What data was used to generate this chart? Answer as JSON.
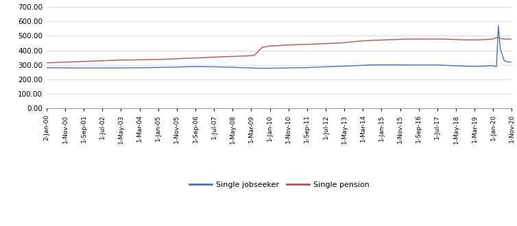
{
  "title": "",
  "jobseeker_color": "#4472C4",
  "pension_color": "#C0504D",
  "ylim": [
    0,
    700
  ],
  "yticks": [
    0,
    100,
    200,
    300,
    400,
    500,
    600,
    700
  ],
  "ytick_labels": [
    "0.00",
    "100.00",
    "200.00",
    "300.00",
    "400.00",
    "500.00",
    "600.00",
    "700.00"
  ],
  "legend_labels": [
    "Single jobseeker",
    "Single pension"
  ],
  "xtick_labels": [
    "2-Jan-00",
    "1-Nov-00",
    "1-Sep-01",
    "1-Jul-02",
    "1-May-03",
    "1-Mar-04",
    "1-Jan-05",
    "1-Nov-05",
    "1-Sep-06",
    "1-Jul-07",
    "1-May-08",
    "1-Mar-09",
    "1-Jan-10",
    "1-Nov-10",
    "1-Sep-11",
    "1-Jul-12",
    "1-May-13",
    "1-Mar-14",
    "1-Jan-15",
    "1-Nov-15",
    "1-Sep-16",
    "1-Jul-17",
    "1-May-18",
    "1-Mar-19",
    "1-Jan-20",
    "1-Nov-20"
  ],
  "jobseeker_data": [
    [
      0,
      280
    ],
    [
      2,
      280
    ],
    [
      4,
      280
    ],
    [
      8,
      280
    ],
    [
      12,
      279
    ],
    [
      16,
      279
    ],
    [
      20,
      279
    ],
    [
      24,
      279
    ],
    [
      28,
      279
    ],
    [
      32,
      279
    ],
    [
      36,
      279
    ],
    [
      40,
      279
    ],
    [
      44,
      280
    ],
    [
      48,
      280
    ],
    [
      52,
      281
    ],
    [
      56,
      282
    ],
    [
      60,
      283
    ],
    [
      64,
      284
    ],
    [
      68,
      285
    ],
    [
      70,
      286
    ],
    [
      74,
      288
    ],
    [
      78,
      288
    ],
    [
      82,
      288
    ],
    [
      84,
      287
    ],
    [
      88,
      287
    ],
    [
      92,
      285
    ],
    [
      96,
      284
    ],
    [
      100,
      282
    ],
    [
      104,
      280
    ],
    [
      108,
      278
    ],
    [
      112,
      277
    ],
    [
      116,
      277
    ],
    [
      120,
      278
    ],
    [
      122,
      278
    ],
    [
      124,
      279
    ],
    [
      128,
      280
    ],
    [
      132,
      281
    ],
    [
      136,
      282
    ],
    [
      140,
      284
    ],
    [
      144,
      286
    ],
    [
      148,
      288
    ],
    [
      152,
      290
    ],
    [
      156,
      292
    ],
    [
      160,
      294
    ],
    [
      162,
      296
    ],
    [
      164,
      297
    ],
    [
      168,
      299
    ],
    [
      172,
      300
    ],
    [
      176,
      300
    ],
    [
      180,
      300
    ],
    [
      184,
      300
    ],
    [
      188,
      299
    ],
    [
      192,
      299
    ],
    [
      196,
      299
    ],
    [
      200,
      299
    ],
    [
      202,
      299
    ],
    [
      204,
      299
    ],
    [
      206,
      298
    ],
    [
      208,
      297
    ],
    [
      210,
      295
    ],
    [
      212,
      294
    ],
    [
      214,
      293
    ],
    [
      216,
      292
    ],
    [
      218,
      291
    ],
    [
      220,
      290
    ],
    [
      222,
      290
    ],
    [
      224,
      290
    ],
    [
      226,
      291
    ],
    [
      228,
      292
    ],
    [
      230,
      293
    ],
    [
      232,
      295
    ],
    [
      234,
      287
    ],
    [
      235,
      570
    ],
    [
      236,
      410
    ],
    [
      238,
      330
    ],
    [
      240,
      320
    ],
    [
      242,
      320
    ]
  ],
  "pension_data": [
    [
      0,
      315
    ],
    [
      2,
      315
    ],
    [
      4,
      316
    ],
    [
      8,
      318
    ],
    [
      12,
      320
    ],
    [
      16,
      322
    ],
    [
      20,
      324
    ],
    [
      24,
      326
    ],
    [
      28,
      328
    ],
    [
      32,
      330
    ],
    [
      36,
      332
    ],
    [
      40,
      334
    ],
    [
      44,
      334
    ],
    [
      48,
      335
    ],
    [
      52,
      336
    ],
    [
      56,
      337
    ],
    [
      60,
      338
    ],
    [
      64,
      340
    ],
    [
      68,
      342
    ],
    [
      70,
      344
    ],
    [
      74,
      346
    ],
    [
      78,
      348
    ],
    [
      82,
      350
    ],
    [
      84,
      352
    ],
    [
      88,
      354
    ],
    [
      92,
      356
    ],
    [
      96,
      358
    ],
    [
      100,
      360
    ],
    [
      104,
      362
    ],
    [
      108,
      365
    ],
    [
      112,
      420
    ],
    [
      116,
      430
    ],
    [
      120,
      432
    ],
    [
      122,
      434
    ],
    [
      124,
      436
    ],
    [
      128,
      438
    ],
    [
      132,
      440
    ],
    [
      136,
      442
    ],
    [
      140,
      444
    ],
    [
      144,
      446
    ],
    [
      148,
      448
    ],
    [
      152,
      450
    ],
    [
      156,
      455
    ],
    [
      160,
      460
    ],
    [
      162,
      463
    ],
    [
      164,
      465
    ],
    [
      168,
      468
    ],
    [
      172,
      470
    ],
    [
      176,
      472
    ],
    [
      180,
      474
    ],
    [
      184,
      476
    ],
    [
      188,
      478
    ],
    [
      192,
      478
    ],
    [
      196,
      478
    ],
    [
      200,
      478
    ],
    [
      202,
      478
    ],
    [
      204,
      478
    ],
    [
      206,
      478
    ],
    [
      208,
      477
    ],
    [
      210,
      476
    ],
    [
      212,
      475
    ],
    [
      214,
      474
    ],
    [
      216,
      473
    ],
    [
      218,
      472
    ],
    [
      220,
      472
    ],
    [
      222,
      472
    ],
    [
      224,
      472
    ],
    [
      226,
      473
    ],
    [
      228,
      474
    ],
    [
      230,
      476
    ],
    [
      232,
      478
    ],
    [
      234,
      488
    ],
    [
      235,
      490
    ],
    [
      236,
      482
    ],
    [
      238,
      478
    ],
    [
      240,
      478
    ],
    [
      242,
      478
    ]
  ]
}
